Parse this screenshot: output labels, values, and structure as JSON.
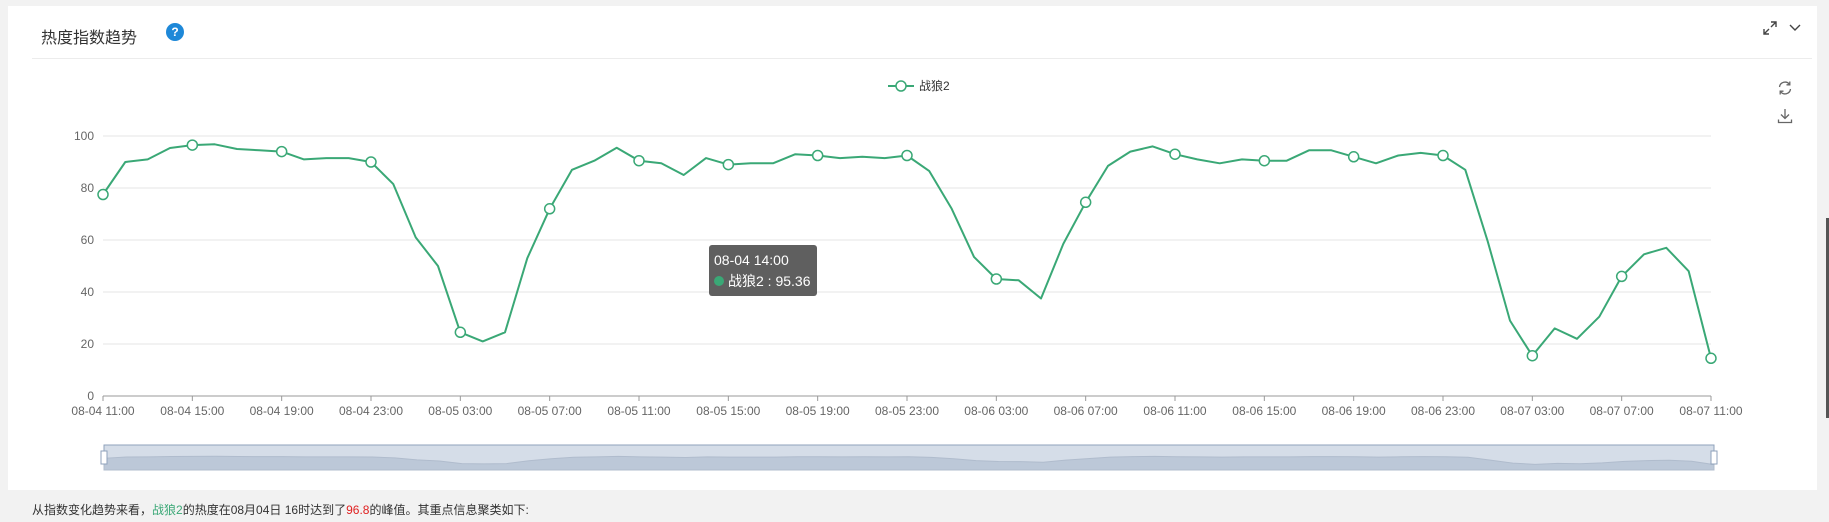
{
  "header": {
    "title": "热度指数趋势",
    "help_icon": "question-icon",
    "icons": [
      "expand-icon",
      "chevron-down-icon"
    ]
  },
  "toolbox": {
    "icons": [
      "refresh-icon",
      "download-icon"
    ]
  },
  "colors": {
    "series": "#3aa876",
    "grid": "#e6e6e6",
    "axis": "#333333",
    "tooltip_bg": "#5f5f5f",
    "peak": "#e02020"
  },
  "tooltip": {
    "title": "08-04 14:00",
    "series": "战狼2",
    "value": "95.36",
    "text": "战狼2 : 95.36"
  },
  "footer": {
    "prefix": "从指数变化趋势来看，",
    "series": "战狼2",
    "middle": "的热度在08月04日 16时达到了",
    "peak": "96.8",
    "suffix": "的峰值。其重点信息聚类如下:"
  },
  "chart_data": {
    "type": "line",
    "legend": "top-center",
    "grid": true,
    "ylim": [
      0,
      100
    ],
    "yticks": [
      "0",
      "20",
      "40",
      "60",
      "80",
      "100"
    ],
    "xticks": [
      "08-04 11:00",
      "08-04 15:00",
      "08-04 19:00",
      "08-04 23:00",
      "08-05 03:00",
      "08-05 07:00",
      "08-05 11:00",
      "08-05 15:00",
      "08-05 19:00",
      "08-05 23:00",
      "08-06 03:00",
      "08-06 07:00",
      "08-06 11:00",
      "08-06 15:00",
      "08-06 19:00",
      "08-06 23:00",
      "08-07 03:00",
      "08-07 07:00",
      "08-07 11:00"
    ],
    "series": [
      {
        "name": "战狼2",
        "values": [
          77.5,
          90,
          91,
          95.4,
          96.5,
          96.8,
          95,
          94.5,
          94,
          91,
          91.5,
          91.5,
          90,
          81.5,
          61,
          50,
          24.5,
          21,
          24.5,
          53,
          72,
          87,
          90.5,
          95.5,
          90.5,
          89.5,
          85,
          91.5,
          89,
          89.5,
          89.5,
          93,
          92.5,
          91.5,
          92,
          91.5,
          92.5,
          86.5,
          72,
          53.5,
          45,
          44.5,
          37.5,
          58.5,
          74.5,
          88.5,
          94,
          96,
          93,
          91,
          89.5,
          91,
          90.5,
          90.5,
          94.5,
          94.5,
          92,
          89.5,
          92.5,
          93.5,
          92.5,
          87,
          59.5,
          29,
          15.5,
          26,
          22,
          30.5,
          46,
          54.5,
          57,
          48,
          14.5
        ]
      }
    ]
  }
}
